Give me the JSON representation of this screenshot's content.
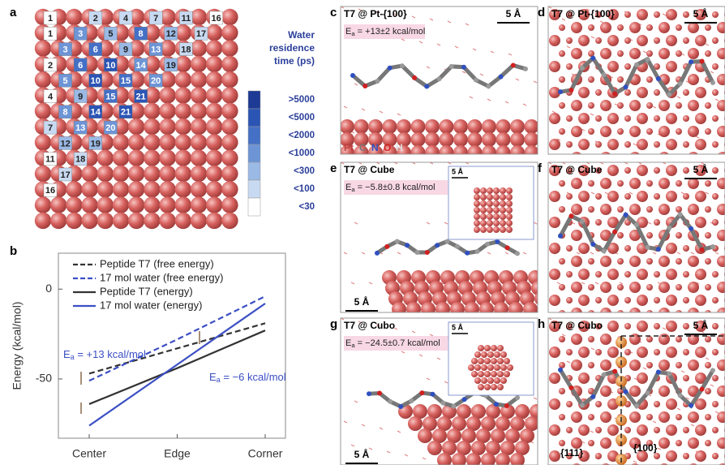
{
  "panel_a": {
    "letter": "a",
    "cells": [
      {
        "label": "1",
        "row": 0,
        "col": 0,
        "level": 6
      },
      {
        "label": "2",
        "row": 0,
        "col": 3,
        "level": 5
      },
      {
        "label": "4",
        "row": 0,
        "col": 5,
        "level": 5
      },
      {
        "label": "7",
        "row": 0,
        "col": 7,
        "level": 5
      },
      {
        "label": "11",
        "row": 0,
        "col": 9,
        "level": 5
      },
      {
        "label": "16",
        "row": 0,
        "col": 11,
        "level": 6
      },
      {
        "label": "1",
        "row": 1,
        "col": 0,
        "level": 6
      },
      {
        "label": "3",
        "row": 1,
        "col": 2,
        "level": 3
      },
      {
        "label": "5",
        "row": 1,
        "col": 4,
        "level": 4
      },
      {
        "label": "8",
        "row": 1,
        "col": 6,
        "level": 2
      },
      {
        "label": "12",
        "row": 1,
        "col": 8,
        "level": 4
      },
      {
        "label": "17",
        "row": 1,
        "col": 10,
        "level": 5
      },
      {
        "label": "3",
        "row": 2,
        "col": 1,
        "level": 3
      },
      {
        "label": "6",
        "row": 2,
        "col": 3,
        "level": 2
      },
      {
        "label": "9",
        "row": 2,
        "col": 5,
        "level": 4
      },
      {
        "label": "13",
        "row": 2,
        "col": 7,
        "level": 3
      },
      {
        "label": "18",
        "row": 2,
        "col": 9,
        "level": 5
      },
      {
        "label": "2",
        "row": 3,
        "col": 0,
        "level": 6
      },
      {
        "label": "6",
        "row": 3,
        "col": 2,
        "level": 2
      },
      {
        "label": "10",
        "row": 3,
        "col": 4,
        "level": 1
      },
      {
        "label": "14",
        "row": 3,
        "col": 6,
        "level": 3
      },
      {
        "label": "19",
        "row": 3,
        "col": 8,
        "level": 4
      },
      {
        "label": "5",
        "row": 4,
        "col": 1,
        "level": 3
      },
      {
        "label": "10",
        "row": 4,
        "col": 3,
        "level": 1
      },
      {
        "label": "15",
        "row": 4,
        "col": 5,
        "level": 2
      },
      {
        "label": "20",
        "row": 4,
        "col": 7,
        "level": 3
      },
      {
        "label": "4",
        "row": 5,
        "col": 0,
        "level": 6
      },
      {
        "label": "9",
        "row": 5,
        "col": 2,
        "level": 4
      },
      {
        "label": "15",
        "row": 5,
        "col": 4,
        "level": 2
      },
      {
        "label": "21",
        "row": 5,
        "col": 6,
        "level": 1
      },
      {
        "label": "8",
        "row": 6,
        "col": 1,
        "level": 3
      },
      {
        "label": "14",
        "row": 6,
        "col": 3,
        "level": 1
      },
      {
        "label": "21",
        "row": 6,
        "col": 5,
        "level": 1
      },
      {
        "label": "7",
        "row": 7,
        "col": 0,
        "level": 5
      },
      {
        "label": "13",
        "row": 7,
        "col": 2,
        "level": 3
      },
      {
        "label": "20",
        "row": 7,
        "col": 4,
        "level": 3
      },
      {
        "label": "12",
        "row": 8,
        "col": 1,
        "level": 4
      },
      {
        "label": "19",
        "row": 8,
        "col": 3,
        "level": 4
      },
      {
        "label": "11",
        "row": 9,
        "col": 0,
        "level": 6
      },
      {
        "label": "18",
        "row": 9,
        "col": 2,
        "level": 5
      },
      {
        "label": "17",
        "row": 10,
        "col": 1,
        "level": 5
      },
      {
        "label": "16",
        "row": 11,
        "col": 0,
        "level": 6
      }
    ],
    "legend": {
      "title": [
        "Water",
        "residence",
        "time (ps)"
      ],
      "labels": [
        ">5000",
        "<5000",
        "<2000",
        "<1000",
        "<300",
        "<100",
        "<30"
      ],
      "colors": [
        "#1d3a94",
        "#2b55b5",
        "#4470c6",
        "#6d95d6",
        "#9ab9e5",
        "#c8daf1",
        "#ffffff"
      ]
    }
  },
  "panel_b": {
    "letter": "b"
  },
  "chart_data": {
    "type": "line",
    "ylabel": "Energy (kcal/mol)",
    "categories": [
      "Center",
      "Edge",
      "Corner"
    ],
    "series": [
      {
        "name": "Peptide T7 (free energy)",
        "color": "#333333",
        "dashed": true,
        "values": [
          -47,
          -33,
          -19
        ]
      },
      {
        "name": "17 mol water (free energy)",
        "color": "#3b4fc4",
        "dashed": true,
        "values": [
          -51,
          -28,
          -4
        ]
      },
      {
        "name": "Peptide T7 (energy)",
        "color": "#333333",
        "dashed": false,
        "values": [
          -64,
          -44,
          -23
        ]
      },
      {
        "name": "17 mol water (energy)",
        "color": "#3b4fc4",
        "dashed": false,
        "values": [
          -76,
          -42,
          -8
        ]
      }
    ],
    "ylim": [
      -83,
      20
    ],
    "yticks": [
      0,
      -50
    ],
    "annotations": [
      {
        "symbol": "E",
        "subscript": "a",
        "text": " = +13 kcal/mol"
      },
      {
        "symbol": "E",
        "subscript": "a",
        "text": " = −6 kcal/mol"
      }
    ]
  },
  "panels": [
    {
      "letter": "c",
      "title": "T7 @ Pt-{100}",
      "scale": "5 Å",
      "energy": {
        "symbol": "E",
        "subscript": "a",
        "text": " = +13±2 kcal/mol"
      },
      "elements": [
        "Pt",
        "C",
        "N",
        "O",
        "H"
      ]
    },
    {
      "letter": "d",
      "title": "T7 @ Pt-{100}",
      "scale": "5 Å"
    },
    {
      "letter": "e",
      "title": "T7 @ Cube",
      "scale": "5 Å",
      "energy": {
        "symbol": "E",
        "subscript": "a",
        "text": " = −5.8±0.8 kcal/mol"
      },
      "inset_scale": "5 Å"
    },
    {
      "letter": "f",
      "title": "T7 @ Cube",
      "scale": "5 Å"
    },
    {
      "letter": "g",
      "title": "T7 @ Cubo",
      "scale": "5 Å",
      "energy": {
        "symbol": "E",
        "subscript": "a",
        "text": " = −24.5±0.7 kcal/mol"
      },
      "inset_scale": "5 Å"
    },
    {
      "letter": "h",
      "title": "T7 @ Cubo",
      "scale": "5 Å",
      "facets": [
        "{111}",
        "{100}"
      ]
    }
  ]
}
